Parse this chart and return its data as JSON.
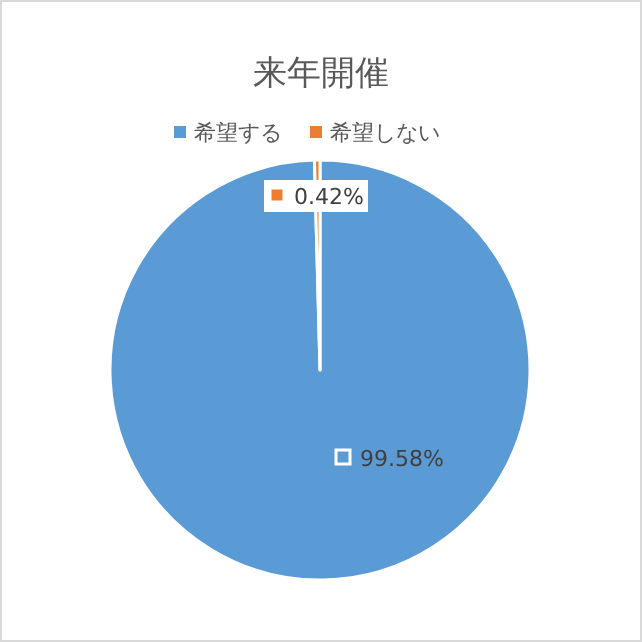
{
  "chart_data": {
    "type": "pie",
    "title": "来年開催",
    "categories": [
      "希望する",
      "希望しない"
    ],
    "values": [
      99.58,
      0.42
    ],
    "colors": [
      "#5b9bd5",
      "#ed7d31"
    ],
    "value_labels": [
      "99.58%",
      "0.42%"
    ],
    "legend": "top"
  }
}
